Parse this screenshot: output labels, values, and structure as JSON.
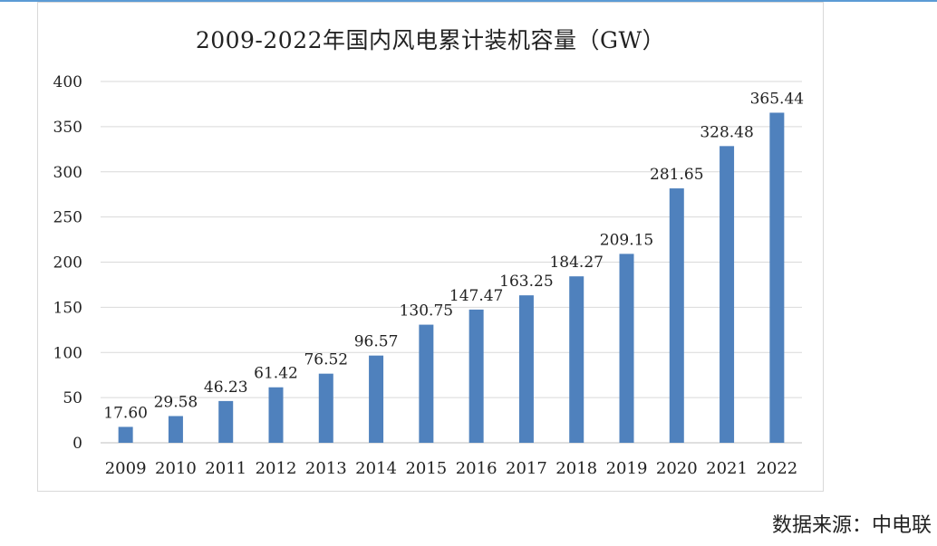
{
  "source_note": "数据来源：中电联",
  "chart_data": {
    "type": "bar",
    "title": "2009-2022年国内风电累计装机容量（GW）",
    "xlabel": "",
    "ylabel": "",
    "categories": [
      "2009",
      "2010",
      "2011",
      "2012",
      "2013",
      "2014",
      "2015",
      "2016",
      "2017",
      "2018",
      "2019",
      "2020",
      "2021",
      "2022"
    ],
    "values": [
      17.6,
      29.58,
      46.23,
      61.42,
      76.52,
      96.57,
      130.75,
      147.47,
      163.25,
      184.27,
      209.15,
      281.65,
      328.48,
      365.44
    ],
    "value_labels": [
      "17.60",
      "29.58",
      "46.23",
      "61.42",
      "76.52",
      "96.57",
      "130.75",
      "147.47",
      "163.25",
      "184.27",
      "209.15",
      "281.65",
      "328.48",
      "365.44"
    ],
    "ylim": [
      0,
      400
    ],
    "yticks": [
      0,
      50,
      100,
      150,
      200,
      250,
      300,
      350,
      400
    ],
    "grid": true,
    "legend": "none",
    "bar_color": "#4f81bd"
  }
}
